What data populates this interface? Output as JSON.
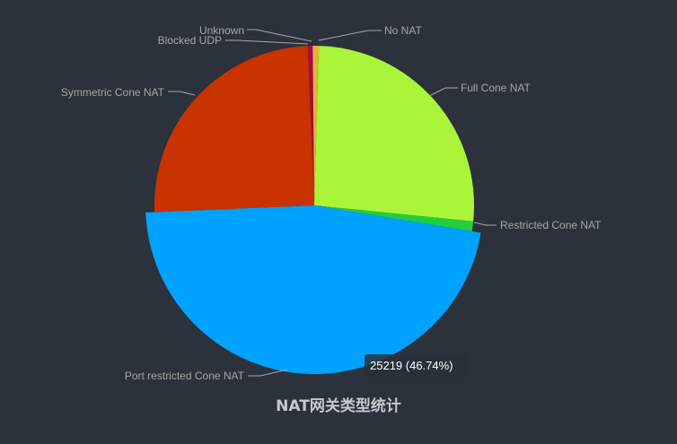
{
  "chart_data": {
    "type": "pie",
    "title": "NAT网关类型统计",
    "slices": [
      {
        "name": "No NAT",
        "value": 250,
        "color": "#ddb926"
      },
      {
        "name": "Full Cone NAT",
        "value": 14100,
        "color": "#aaf43a"
      },
      {
        "name": "Restricted Cone NAT",
        "value": 540,
        "color": "#1fcf3f"
      },
      {
        "name": "Port restricted Cone NAT",
        "value": 25219,
        "color": "#00a2ff",
        "highlighted": true,
        "tooltip": "25219 (46.74%)"
      },
      {
        "name": "Symmetric Cone NAT",
        "value": 13500,
        "color": "#c83300"
      },
      {
        "name": "Blocked UDP",
        "value": 270,
        "color": "#a50f36"
      },
      {
        "name": "Unknown",
        "value": 80,
        "color": "#e8a0b0"
      }
    ]
  }
}
